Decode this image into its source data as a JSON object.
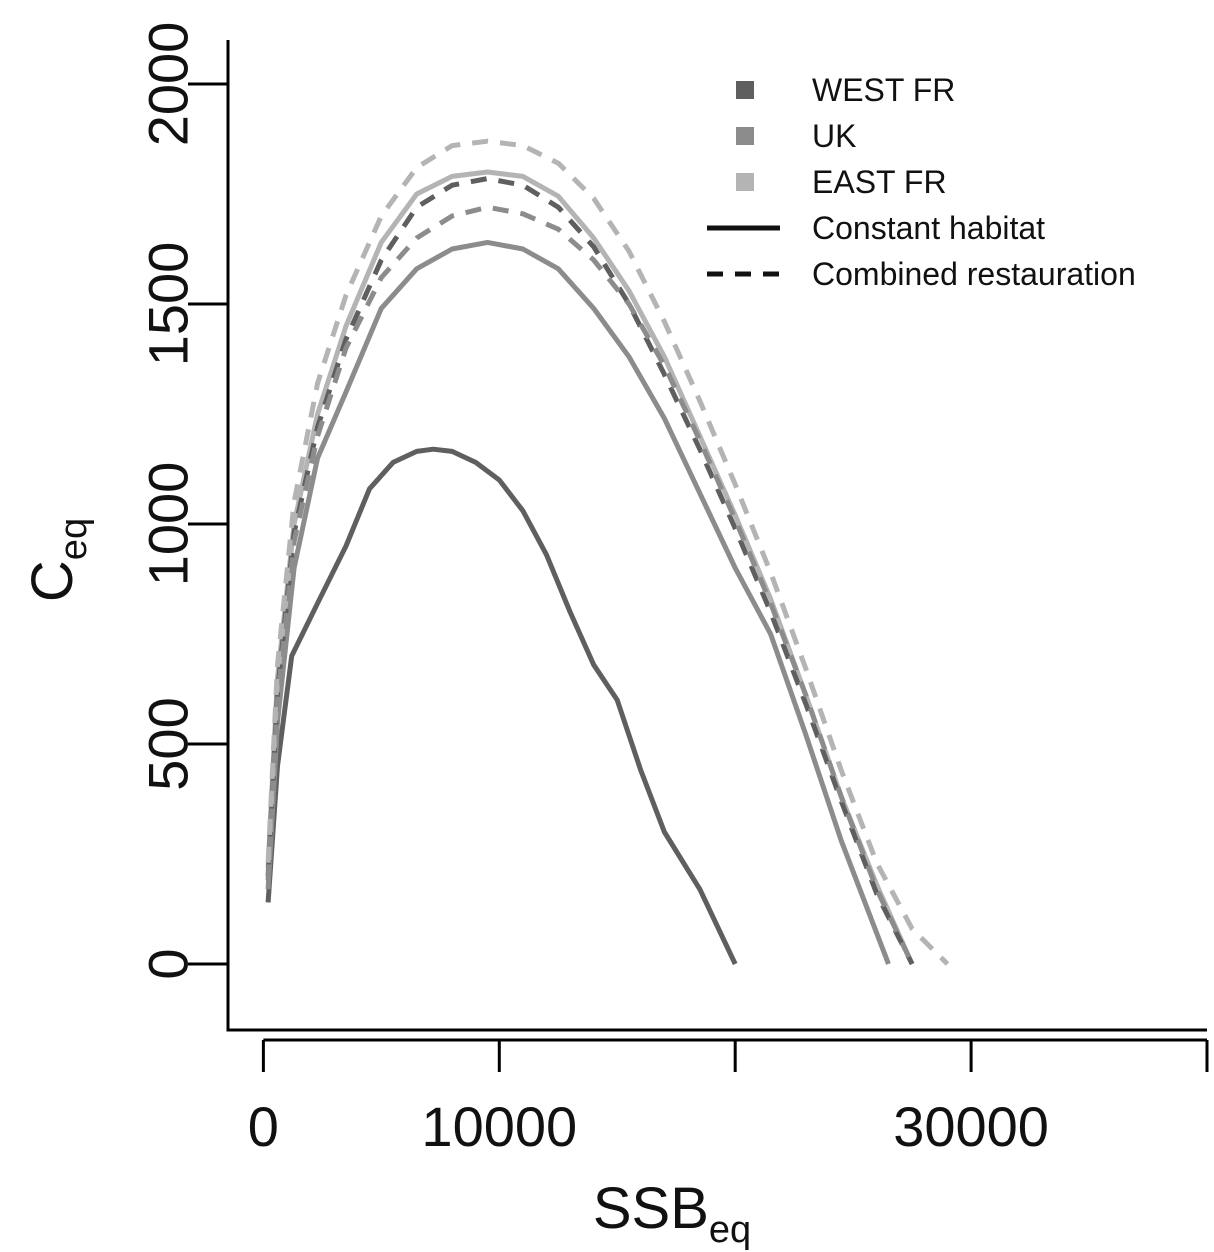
{
  "chart_data": {
    "type": "line",
    "title": "",
    "xlabel": {
      "main": "SSB",
      "sub": "eq"
    },
    "ylabel": {
      "main": "C",
      "sub": "eq"
    },
    "xlim": [
      -1500,
      40000
    ],
    "ylim": [
      -150,
      2100
    ],
    "x_ticks": [
      {
        "value": 0,
        "label": "0"
      },
      {
        "value": 10000,
        "label": "10000"
      },
      {
        "value": 20000,
        "label": ""
      },
      {
        "value": 30000,
        "label": "30000"
      },
      {
        "value": 40000,
        "label": ""
      }
    ],
    "y_ticks": [
      {
        "value": 0,
        "label": "0"
      },
      {
        "value": 500,
        "label": "500"
      },
      {
        "value": 1000,
        "label": "1000"
      },
      {
        "value": 1500,
        "label": "1500"
      },
      {
        "value": 2000,
        "label": "2000"
      }
    ],
    "grid": false,
    "legend": {
      "placement": "top-right",
      "colors": [
        {
          "name": "WEST FR",
          "color": "#5f5f5f"
        },
        {
          "name": "UK",
          "color": "#8c8c8c"
        },
        {
          "name": "EAST FR",
          "color": "#b4b4b4"
        }
      ],
      "styles": [
        {
          "name": "Constant habitat",
          "dash": "solid"
        },
        {
          "name": "Combined restauration",
          "dash": "dashed"
        }
      ]
    },
    "series": [
      {
        "region": "WEST FR",
        "scenario": "Constant habitat",
        "color": "#5f5f5f",
        "dash": "solid",
        "points": [
          [
            200,
            140
          ],
          [
            600,
            450
          ],
          [
            1200,
            700
          ],
          [
            2300,
            820
          ],
          [
            3500,
            950
          ],
          [
            4500,
            1080
          ],
          [
            5500,
            1140
          ],
          [
            6500,
            1165
          ],
          [
            7200,
            1170
          ],
          [
            8000,
            1165
          ],
          [
            9000,
            1140
          ],
          [
            10000,
            1100
          ],
          [
            11000,
            1030
          ],
          [
            12000,
            930
          ],
          [
            13000,
            800
          ],
          [
            14000,
            680
          ],
          [
            15000,
            600
          ],
          [
            16000,
            440
          ],
          [
            17000,
            300
          ],
          [
            18500,
            170
          ],
          [
            20000,
            0
          ]
        ]
      },
      {
        "region": "UK",
        "scenario": "Constant habitat",
        "color": "#8c8c8c",
        "dash": "solid",
        "points": [
          [
            200,
            170
          ],
          [
            600,
            550
          ],
          [
            1300,
            900
          ],
          [
            2300,
            1150
          ],
          [
            3500,
            1300
          ],
          [
            5000,
            1490
          ],
          [
            6500,
            1580
          ],
          [
            8000,
            1625
          ],
          [
            9500,
            1640
          ],
          [
            11000,
            1625
          ],
          [
            12500,
            1580
          ],
          [
            14000,
            1490
          ],
          [
            15500,
            1380
          ],
          [
            17000,
            1240
          ],
          [
            18500,
            1070
          ],
          [
            20000,
            900
          ],
          [
            21500,
            750
          ],
          [
            23000,
            520
          ],
          [
            24500,
            280
          ],
          [
            26500,
            0
          ]
        ]
      },
      {
        "region": "EAST FR",
        "scenario": "Constant habitat",
        "color": "#b4b4b4",
        "dash": "solid",
        "points": [
          [
            200,
            220
          ],
          [
            600,
            650
          ],
          [
            1300,
            1000
          ],
          [
            2300,
            1250
          ],
          [
            3500,
            1450
          ],
          [
            5000,
            1640
          ],
          [
            6500,
            1750
          ],
          [
            8000,
            1790
          ],
          [
            9500,
            1800
          ],
          [
            11000,
            1790
          ],
          [
            12500,
            1745
          ],
          [
            14000,
            1650
          ],
          [
            15500,
            1530
          ],
          [
            17000,
            1380
          ],
          [
            18500,
            1200
          ],
          [
            20000,
            1020
          ],
          [
            21500,
            830
          ],
          [
            23000,
            610
          ],
          [
            24500,
            380
          ],
          [
            26000,
            180
          ],
          [
            27500,
            0
          ]
        ]
      },
      {
        "region": "WEST FR",
        "scenario": "Combined restauration",
        "color": "#5f5f5f",
        "dash": "dashed",
        "points": [
          [
            200,
            200
          ],
          [
            600,
            620
          ],
          [
            1300,
            980
          ],
          [
            2300,
            1220
          ],
          [
            3500,
            1420
          ],
          [
            5000,
            1600
          ],
          [
            6500,
            1720
          ],
          [
            8000,
            1770
          ],
          [
            9500,
            1785
          ],
          [
            11000,
            1770
          ],
          [
            12500,
            1720
          ],
          [
            14000,
            1630
          ],
          [
            15500,
            1500
          ],
          [
            17000,
            1340
          ],
          [
            18500,
            1170
          ],
          [
            20000,
            990
          ],
          [
            21500,
            800
          ],
          [
            23000,
            590
          ],
          [
            24500,
            370
          ],
          [
            26000,
            160
          ],
          [
            27500,
            0
          ]
        ]
      },
      {
        "region": "UK",
        "scenario": "Combined restauration",
        "color": "#8c8c8c",
        "dash": "dashed",
        "points": [
          [
            200,
            190
          ],
          [
            600,
            600
          ],
          [
            1300,
            960
          ],
          [
            2300,
            1200
          ],
          [
            3500,
            1400
          ],
          [
            5000,
            1560
          ],
          [
            6500,
            1650
          ],
          [
            8000,
            1700
          ],
          [
            9500,
            1720
          ],
          [
            11000,
            1705
          ],
          [
            12500,
            1670
          ],
          [
            14000,
            1600
          ],
          [
            15500,
            1500
          ],
          [
            17000,
            1360
          ],
          [
            18500,
            1190
          ],
          [
            20000,
            1010
          ],
          [
            21500,
            820
          ],
          [
            23000,
            610
          ],
          [
            24500,
            380
          ],
          [
            26000,
            170
          ],
          [
            27500,
            0
          ]
        ]
      },
      {
        "region": "EAST FR",
        "scenario": "Combined restauration",
        "color": "#b4b4b4",
        "dash": "dashed",
        "points": [
          [
            200,
            230
          ],
          [
            600,
            680
          ],
          [
            1300,
            1050
          ],
          [
            2300,
            1320
          ],
          [
            3500,
            1520
          ],
          [
            5000,
            1700
          ],
          [
            6500,
            1810
          ],
          [
            8000,
            1860
          ],
          [
            9500,
            1870
          ],
          [
            11000,
            1860
          ],
          [
            12500,
            1820
          ],
          [
            14000,
            1740
          ],
          [
            15500,
            1620
          ],
          [
            17000,
            1460
          ],
          [
            18500,
            1280
          ],
          [
            20000,
            1090
          ],
          [
            21500,
            890
          ],
          [
            23000,
            670
          ],
          [
            24500,
            440
          ],
          [
            26000,
            230
          ],
          [
            27500,
            80
          ],
          [
            29000,
            0
          ]
        ]
      }
    ]
  }
}
